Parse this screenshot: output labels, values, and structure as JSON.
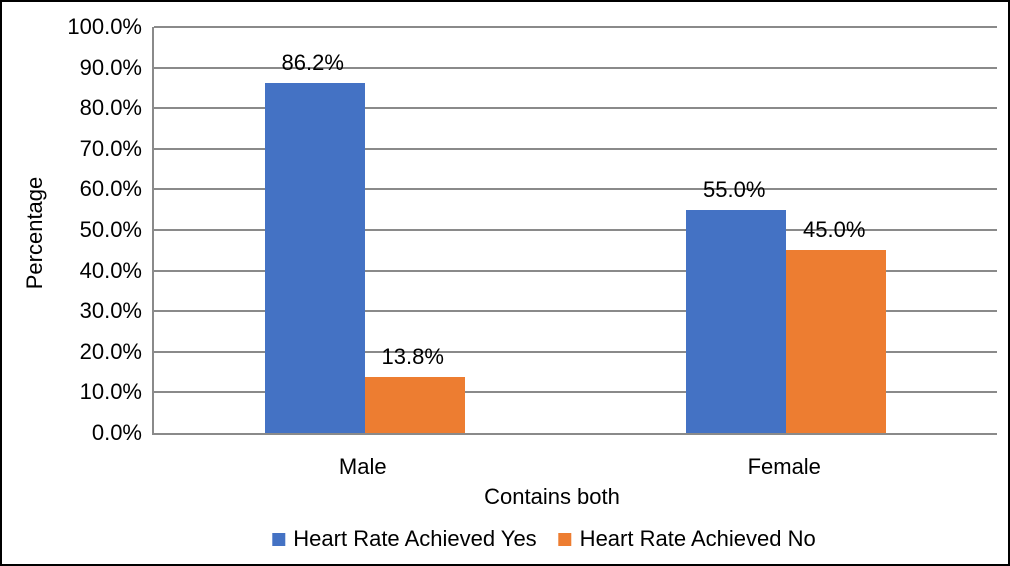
{
  "chart_data": {
    "type": "bar",
    "title": "",
    "categories": [
      "Male",
      "Female"
    ],
    "series": [
      {
        "name": "Heart Rate Achieved Yes",
        "color": "#4472C4",
        "values": [
          86.2,
          55.0
        ],
        "data_labels": [
          "86.2%",
          "55.0%"
        ]
      },
      {
        "name": "Heart Rate Achieved No",
        "color": "#ED7D31",
        "values": [
          13.8,
          45.0
        ],
        "data_labels": [
          "13.8%",
          "45.0%"
        ]
      }
    ],
    "xlabel": "Contains both",
    "ylabel": "Percentage",
    "ylim": [
      0,
      100
    ],
    "ytick_step": 10,
    "ytick_labels": [
      "0.0%",
      "10.0%",
      "20.0%",
      "30.0%",
      "40.0%",
      "50.0%",
      "60.0%",
      "70.0%",
      "80.0%",
      "90.0%",
      "100.0%"
    ],
    "grid": true,
    "gridline_color": "#8a8a8a",
    "axis_line_color": "#8a8a8a",
    "text_color": "#000000",
    "legend_position": "bottom"
  }
}
